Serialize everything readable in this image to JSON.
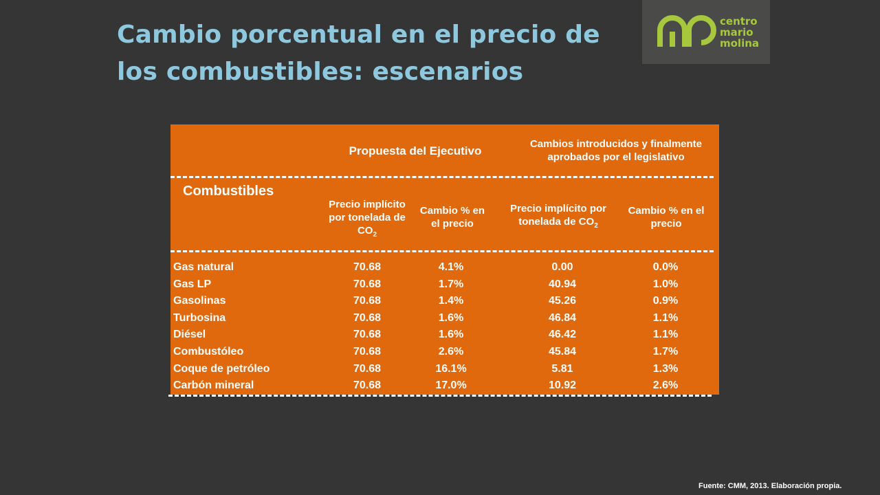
{
  "title": {
    "line1": "Cambio porcentual en el precio de",
    "line2": "los combustibles: escenarios"
  },
  "logo": {
    "line1": "centro",
    "line2": "mario",
    "line3": "molina",
    "brand_color": "#a7c73d"
  },
  "table": {
    "group_headers": [
      "Propuesta del Ejecutivo",
      "Cambios introducidos y finalmente aprobados por el legislativo"
    ],
    "first_column_header": "Combustibles",
    "sub_headers": [
      {
        "text": "Precio implícito por tonelada de CO",
        "sub": "2"
      },
      {
        "text": "Cambio % en el precio",
        "sub": ""
      },
      {
        "text": "Precio implícito por tonelada de CO",
        "sub": "2"
      },
      {
        "text": "Cambio % en el precio",
        "sub": ""
      }
    ],
    "rows": [
      {
        "fuel": "Gas natural",
        "exec_price": "70.68",
        "exec_change": "4.1%",
        "leg_price": "0.00",
        "leg_change": "0.0%"
      },
      {
        "fuel": "Gas LP",
        "exec_price": "70.68",
        "exec_change": "1.7%",
        "leg_price": "40.94",
        "leg_change": "1.0%"
      },
      {
        "fuel": "Gasolinas",
        "exec_price": "70.68",
        "exec_change": "1.4%",
        "leg_price": "45.26",
        "leg_change": "0.9%"
      },
      {
        "fuel": "Turbosina",
        "exec_price": "70.68",
        "exec_change": "1.6%",
        "leg_price": "46.84",
        "leg_change": "1.1%"
      },
      {
        "fuel": "Diésel",
        "exec_price": "70.68",
        "exec_change": "1.6%",
        "leg_price": "46.42",
        "leg_change": "1.1%"
      },
      {
        "fuel": "Combustóleo",
        "exec_price": "70.68",
        "exec_change": "2.6%",
        "leg_price": "45.84",
        "leg_change": "1.7%"
      },
      {
        "fuel": "Coque de petróleo",
        "exec_price": "70.68",
        "exec_change": "16.1%",
        "leg_price": "5.81",
        "leg_change": "1.3%"
      },
      {
        "fuel": "Carbón mineral",
        "exec_price": "70.68",
        "exec_change": "17.0%",
        "leg_price": "10.92",
        "leg_change": "2.6%"
      }
    ],
    "colors": {
      "background": "#e0680d",
      "text": "#ffffff"
    }
  },
  "source": "Fuente: CMM, 2013. Elaboración propia.",
  "colors": {
    "slide_background": "#343534",
    "title": "#8ec8de"
  }
}
